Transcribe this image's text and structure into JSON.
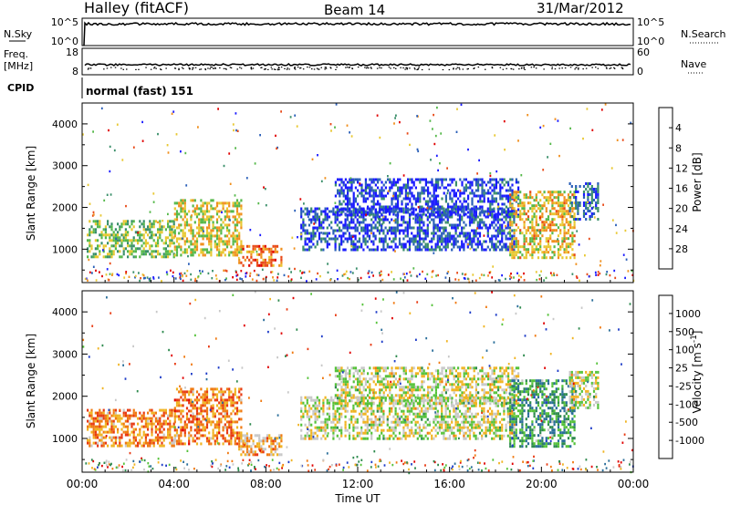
{
  "header": {
    "station": "Halley (fitACF)",
    "beam": "Beam 14",
    "date": "31/Mar/2012"
  },
  "top_strips": {
    "nsky_label": "N.Sky",
    "nsky_ticks": [
      "10^5",
      "10^0"
    ],
    "nsearch_label": "N.Search",
    "nsearch_ticks": [
      "10^5",
      "10^0"
    ],
    "freq_label": "Freq.",
    "freq_unit": "[MHz]",
    "freq_ticks": [
      "18",
      "8"
    ],
    "nave_label": "Nave",
    "nave_ticks": [
      "60",
      "0"
    ],
    "cpid_label": "CPID",
    "cpid_text": "normal (fast) 151"
  },
  "chart_data": [
    {
      "type": "heatmap",
      "quantity": "Power",
      "ylabel": "Slant Range [km]",
      "yticks": [
        "1000",
        "2000",
        "3000",
        "4000"
      ],
      "ylim": [
        200,
        4500
      ],
      "xlim_hours": [
        0,
        24
      ],
      "colorbar": {
        "label": "Power [dB]",
        "ticks": [
          "4",
          "8",
          "12",
          "16",
          "20",
          "24",
          "28"
        ],
        "colors": [
          "#1a1aff",
          "#2a5fb8",
          "#3a8f6a",
          "#55b84a",
          "#e8c832",
          "#f0901e",
          "#e84a18",
          "#e00000"
        ]
      },
      "echo_regions": [
        {
          "t0": 0.2,
          "t1": 4.0,
          "r0": 800,
          "r1": 1700,
          "level": 0.45
        },
        {
          "t0": 4.0,
          "t1": 6.9,
          "r0": 850,
          "r1": 2200,
          "level": 0.55
        },
        {
          "t0": 6.8,
          "t1": 8.7,
          "r0": 600,
          "r1": 1100,
          "level": 0.75
        },
        {
          "t0": 9.5,
          "t1": 18.8,
          "r0": 1000,
          "r1": 2000,
          "level": 0.15
        },
        {
          "t0": 11.0,
          "t1": 19.0,
          "r0": 1800,
          "r1": 2700,
          "level": 0.12
        },
        {
          "t0": 18.6,
          "t1": 21.4,
          "r0": 800,
          "r1": 2400,
          "level": 0.6
        },
        {
          "t0": 21.2,
          "t1": 22.5,
          "r0": 1700,
          "r1": 2600,
          "level": 0.2
        }
      ]
    },
    {
      "type": "heatmap",
      "quantity": "Velocity",
      "ylabel": "Slant Range [km]",
      "yticks": [
        "1000",
        "2000",
        "3000",
        "4000"
      ],
      "ylim": [
        200,
        4500
      ],
      "xlim_hours": [
        0,
        24
      ],
      "xticks": [
        "00:00",
        "04:00",
        "08:00",
        "12:00",
        "16:00",
        "20:00",
        "00:00"
      ],
      "xlabel": "Time UT",
      "colorbar": {
        "label": "Velocity [m s",
        "label_sup": "-1",
        "label_end": "]",
        "ticks": [
          "1000",
          "500",
          "100",
          "25",
          "-25",
          "-100",
          "-500",
          "-1000"
        ],
        "colors": [
          "#1e3cc8",
          "#2a6e9a",
          "#2e8a4e",
          "#55c23a",
          "#c8c8c8",
          "#f0b422",
          "#f07a12",
          "#e83a12",
          "#e00000"
        ]
      },
      "echo_regions": [
        {
          "t0": 0.2,
          "t1": 4.0,
          "r0": 800,
          "r1": 1700,
          "level": 0.7
        },
        {
          "t0": 4.0,
          "t1": 6.9,
          "r0": 900,
          "r1": 2200,
          "level": 0.72
        },
        {
          "t0": 6.8,
          "t1": 8.7,
          "r0": 600,
          "r1": 1100,
          "level": 0.62
        },
        {
          "t0": 9.5,
          "t1": 18.8,
          "r0": 1000,
          "r1": 2000,
          "level": 0.5
        },
        {
          "t0": 11.0,
          "t1": 19.0,
          "r0": 1800,
          "r1": 2700,
          "level": 0.5
        },
        {
          "t0": 18.6,
          "t1": 21.4,
          "r0": 800,
          "r1": 2400,
          "level": 0.28
        },
        {
          "t0": 21.2,
          "t1": 22.5,
          "r0": 1700,
          "r1": 2600,
          "level": 0.5
        }
      ]
    }
  ]
}
